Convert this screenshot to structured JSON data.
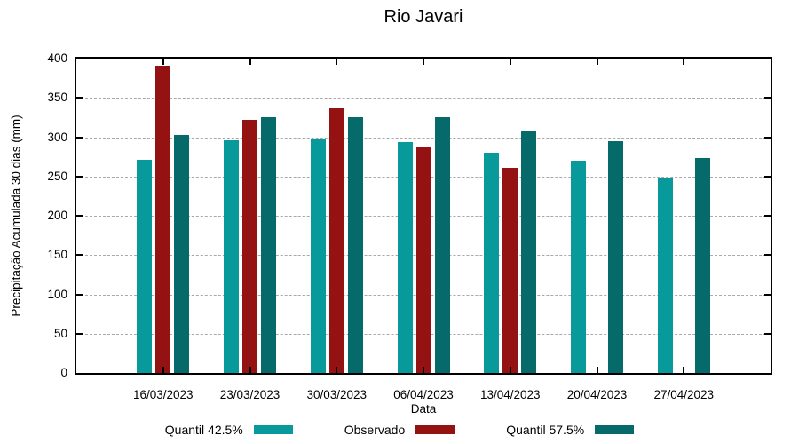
{
  "chart_data": {
    "type": "bar",
    "title": "Rio Javari",
    "xlabel": "Data",
    "ylabel": "Precipitação Acumulada 30 dias (mm)",
    "ylim": [
      0,
      400
    ],
    "ytick_step": 50,
    "ytick_labels": [
      "0",
      "50",
      "100",
      "150",
      "200",
      "250",
      "300",
      "350",
      "400"
    ],
    "grid": "horizontal-dotted",
    "legend_position": "bottom-center",
    "categories": [
      "16/03/2023",
      "23/03/2023",
      "30/03/2023",
      "06/04/2023",
      "13/04/2023",
      "20/04/2023",
      "27/04/2023"
    ],
    "series": [
      {
        "name": "Quantil 42.5%",
        "color": "#089A9A",
        "values": [
          271,
          296,
          297,
          294,
          280,
          270,
          247
        ]
      },
      {
        "name": "Observado",
        "color": "#951212",
        "values": [
          391,
          322,
          337,
          288,
          261,
          null,
          null
        ]
      },
      {
        "name": "Quantil 57.5%",
        "color": "#066A6A",
        "values": [
          303,
          326,
          326,
          326,
          307,
          295,
          274
        ]
      }
    ]
  },
  "colors": {
    "axis": "#000000",
    "gridline": "#a9a9a9",
    "background": "#ffffff"
  }
}
